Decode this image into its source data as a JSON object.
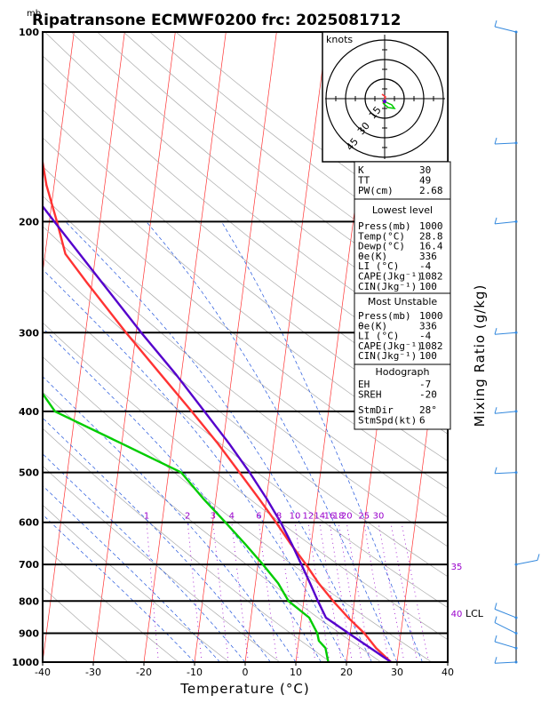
{
  "title": "Ripatransone ECMWF0200 frc: 2025081712",
  "y_unit": "mb",
  "x_axis_label": "Temperature (°C)",
  "right_axis_label": "Mixing Ratio (g/kg)",
  "hodograph": {
    "unit_label": "knots",
    "ring_labels": [
      "15",
      "30",
      "45"
    ]
  },
  "mixing_ratio_labels": [
    "1",
    "2",
    "3",
    "4",
    "6",
    "8",
    "10",
    "12",
    "14",
    "16",
    "18",
    "20",
    "25",
    "30",
    "35",
    "40"
  ],
  "lcl_label": "LCL",
  "indices_block": {
    "rows": [
      {
        "label": "K",
        "value": "30"
      },
      {
        "label": "TT",
        "value": "49"
      },
      {
        "label": "PW(cm)",
        "value": "2.68"
      }
    ]
  },
  "lowest_level": {
    "header": "Lowest level",
    "rows": [
      {
        "label": "Press(mb)",
        "value": "1000"
      },
      {
        "label": "Temp(°C)",
        "value": "28.8"
      },
      {
        "label": "Dewp(°C)",
        "value": "16.4"
      },
      {
        "label": "θe(K)",
        "value": "336"
      },
      {
        "label": "LI (°C)",
        "value": "-4"
      },
      {
        "label": "CAPE(Jkg⁻¹)",
        "value": "1082"
      },
      {
        "label": "CIN(Jkg⁻¹)",
        "value": "100"
      }
    ]
  },
  "most_unstable": {
    "header": "Most Unstable",
    "rows": [
      {
        "label": "Press(mb)",
        "value": "1000"
      },
      {
        "label": "θe(K)",
        "value": "336"
      },
      {
        "label": "LI (°C)",
        "value": "-4"
      },
      {
        "label": "CAPE(Jkg⁻¹)",
        "value": "1082"
      },
      {
        "label": "CIN(Jkg⁻¹)",
        "value": "100"
      }
    ]
  },
  "hodograph_block": {
    "header": "Hodograph",
    "rows": [
      {
        "label": "EH",
        "value": "-7"
      },
      {
        "label": "SREH",
        "value": "-20"
      },
      {
        "label": "StmDir",
        "value": "28°"
      },
      {
        "label": "StmSpd(kt)",
        "value": "6"
      }
    ]
  },
  "colors": {
    "temperature": "#ff3333",
    "dewpoint": "#00cc00",
    "parcel": "#5500cc",
    "isotherm": "#ff3333",
    "dry_adiabat": "#aaaaaa",
    "moist_adiabat": "#2255dd",
    "mixing_ratio": "#9900cc",
    "wind_barb": "#3388dd"
  },
  "chart_data": {
    "type": "skew-t log-p",
    "xlabel": "Temperature (°C)",
    "ylabel": "mb",
    "xlim": [
      -40,
      40
    ],
    "ylim": [
      1000,
      100
    ],
    "y_scale": "log",
    "x_ticks": [
      -40,
      -30,
      -20,
      -10,
      0,
      10,
      20,
      30,
      40
    ],
    "pressure_ticks": [
      1000,
      900,
      800,
      700,
      600,
      500,
      400,
      300,
      200,
      100
    ],
    "mixing_ratio_values": [
      1,
      2,
      3,
      4,
      6,
      8,
      10,
      12,
      14,
      16,
      18,
      20,
      25,
      30,
      35,
      40
    ],
    "series": [
      {
        "kind": "temperature",
        "points": [
          {
            "p": 1000,
            "t": 28.8
          },
          {
            "p": 950,
            "t": 25.5
          },
          {
            "p": 900,
            "t": 22.8
          },
          {
            "p": 850,
            "t": 19.2
          },
          {
            "p": 800,
            "t": 15.8
          },
          {
            "p": 750,
            "t": 12.5
          },
          {
            "p": 700,
            "t": 9.5
          },
          {
            "p": 650,
            "t": 6.0
          },
          {
            "p": 600,
            "t": 2.5
          },
          {
            "p": 550,
            "t": -1.5
          },
          {
            "p": 500,
            "t": -6.0
          },
          {
            "p": 450,
            "t": -11.0
          },
          {
            "p": 400,
            "t": -17.0
          },
          {
            "p": 350,
            "t": -24.0
          },
          {
            "p": 300,
            "t": -32.0
          },
          {
            "p": 250,
            "t": -41.0
          },
          {
            "p": 225,
            "t": -46.0
          },
          {
            "p": 200,
            "t": -48.5
          },
          {
            "p": 175,
            "t": -51.5
          },
          {
            "p": 150,
            "t": -54.0
          },
          {
            "p": 125,
            "t": -56.0
          },
          {
            "p": 100,
            "t": -58.0
          }
        ]
      },
      {
        "kind": "dewpoint",
        "points": [
          {
            "p": 1000,
            "t": 16.4
          },
          {
            "p": 950,
            "t": 15.5
          },
          {
            "p": 925,
            "t": 14.0
          },
          {
            "p": 900,
            "t": 13.5
          },
          {
            "p": 850,
            "t": 11.5
          },
          {
            "p": 800,
            "t": 7.0
          },
          {
            "p": 750,
            "t": 4.5
          },
          {
            "p": 700,
            "t": 1.0
          },
          {
            "p": 650,
            "t": -3.0
          },
          {
            "p": 600,
            "t": -7.5
          },
          {
            "p": 550,
            "t": -12.5
          },
          {
            "p": 500,
            "t": -17.5
          },
          {
            "p": 450,
            "t": -30.0
          },
          {
            "p": 400,
            "t": -44.0
          },
          {
            "p": 350,
            "t": -50.0
          },
          {
            "p": 300,
            "t": -57.0
          },
          {
            "p": 250,
            "t": -64.0
          },
          {
            "p": 200,
            "t": -71.0
          },
          {
            "p": 150,
            "t": -80.0
          },
          {
            "p": 100,
            "t": -92.0
          }
        ]
      },
      {
        "kind": "parcel",
        "points": [
          {
            "p": 1000,
            "t": 28.8
          },
          {
            "p": 950,
            "t": 24.4
          },
          {
            "p": 900,
            "t": 19.7
          },
          {
            "p": 850,
            "t": 14.8
          },
          {
            "p": 800,
            "t": 12.8
          },
          {
            "p": 750,
            "t": 10.8
          },
          {
            "p": 700,
            "t": 8.6
          },
          {
            "p": 650,
            "t": 6.2
          },
          {
            "p": 600,
            "t": 3.4
          },
          {
            "p": 550,
            "t": 0.0
          },
          {
            "p": 500,
            "t": -4.0
          },
          {
            "p": 450,
            "t": -8.8
          },
          {
            "p": 400,
            "t": -14.5
          },
          {
            "p": 350,
            "t": -21.0
          },
          {
            "p": 300,
            "t": -29.0
          },
          {
            "p": 250,
            "t": -38.0
          },
          {
            "p": 200,
            "t": -49.0
          },
          {
            "p": 150,
            "t": -63.0
          },
          {
            "p": 120,
            "t": -74.0
          }
        ]
      }
    ],
    "lcl_pressure": 840,
    "hodograph_rings_kt": [
      15,
      30,
      45
    ]
  }
}
